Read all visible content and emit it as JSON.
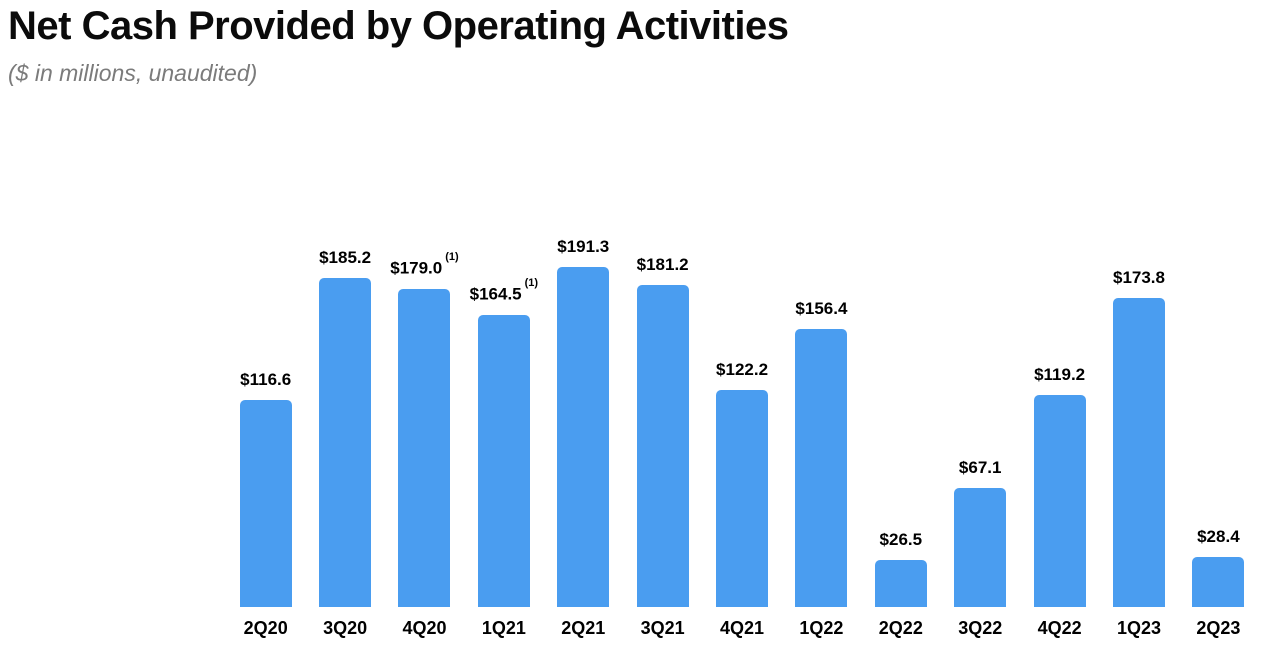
{
  "header": {
    "title": "Net Cash Provided by Operating Activities",
    "subtitle": "($ in millions, unaudited)"
  },
  "chart_data": {
    "type": "bar",
    "title": "Net Cash Provided by Operating Activities",
    "subtitle": "($ in millions, unaudited)",
    "unit": "$ in millions",
    "categories": [
      "2Q20",
      "3Q20",
      "4Q20",
      "1Q21",
      "2Q21",
      "3Q21",
      "4Q21",
      "1Q22",
      "2Q22",
      "3Q22",
      "4Q22",
      "1Q23",
      "2Q23"
    ],
    "values": [
      116.6,
      185.2,
      179.0,
      164.5,
      191.3,
      181.2,
      122.2,
      156.4,
      26.5,
      67.1,
      119.2,
      173.8,
      28.4
    ],
    "labels": [
      "$116.6",
      "$185.2",
      "$179.0",
      "$164.5",
      "$191.3",
      "$181.2",
      "$122.2",
      "$156.4",
      "$26.5",
      "$67.1",
      "$119.2",
      "$173.8",
      "$28.4"
    ],
    "footnotes": [
      "",
      "",
      "(1)",
      "(1)",
      "",
      "",
      "",
      "",
      "",
      "",
      "",
      "",
      ""
    ],
    "bar_color": "#4A9DF0",
    "xlabel": "",
    "ylabel": "",
    "ylim": [
      0,
      200
    ],
    "grid": false,
    "y_axis_visible": false,
    "data_labels": true,
    "legend": null
  }
}
